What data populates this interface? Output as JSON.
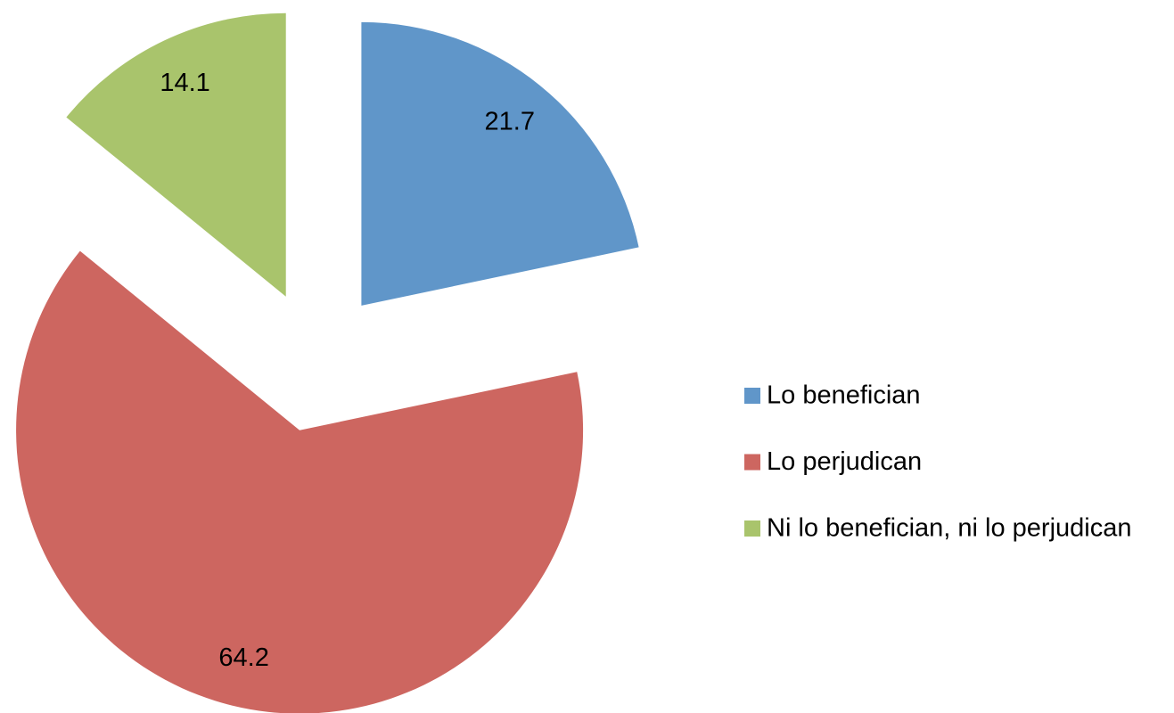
{
  "chart_data": {
    "type": "pie",
    "categories": [
      "Lo benefician",
      "Lo perjudican",
      "Ni lo benefician, ni lo perjudican"
    ],
    "values": [
      21.7,
      64.2,
      14.1
    ],
    "colors": [
      "#6096c9",
      "#cd6660",
      "#a9c46c"
    ],
    "exploded": true,
    "legend": "right"
  }
}
